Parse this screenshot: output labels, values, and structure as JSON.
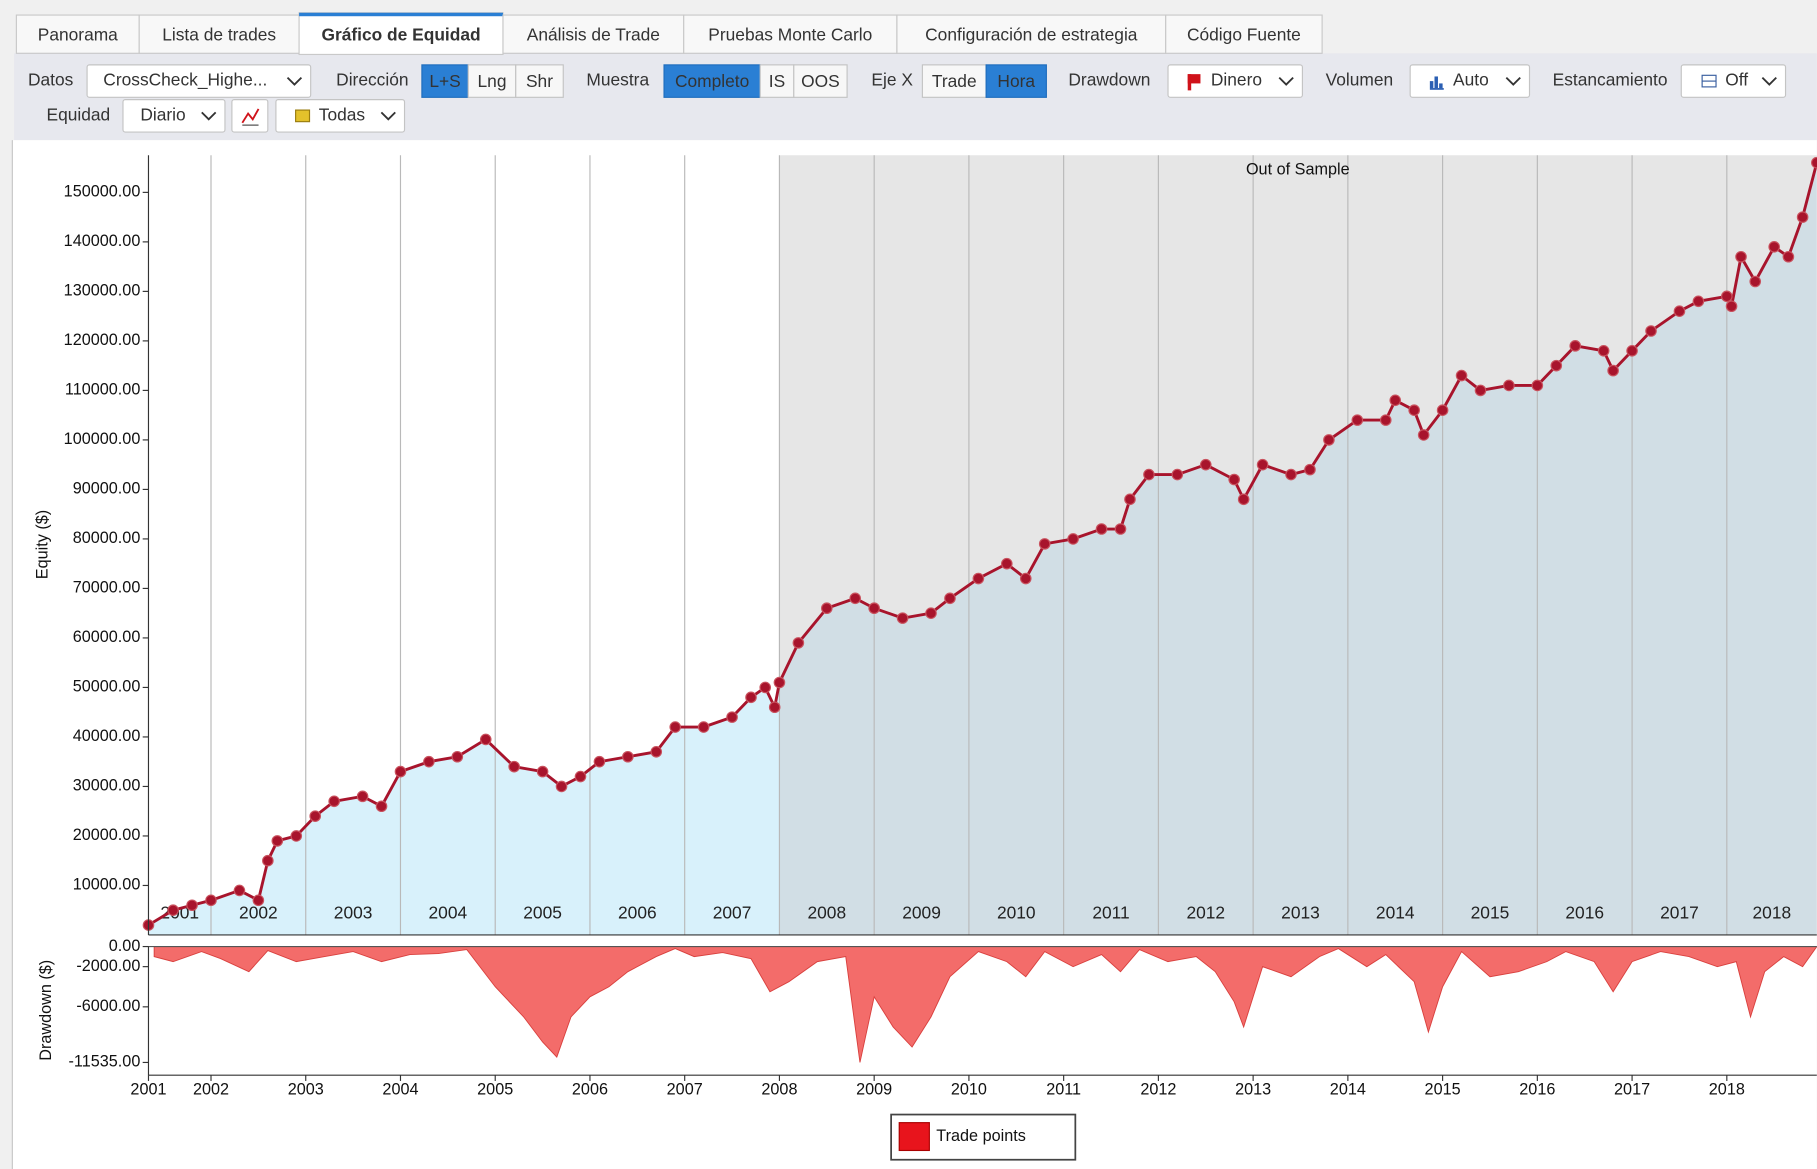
{
  "tabs": [
    "Panorama",
    "Lista de trades",
    "Gráfico de Equidad",
    "Análisis de Trade",
    "Pruebas Monte Carlo",
    "Configuración de estrategia",
    "Código Fuente"
  ],
  "active_tab": 2,
  "toolbar": [
    [
      {
        "label": "Datos"
      },
      {
        "dropdown": "CrossCheck_Highe..."
      },
      {
        "label": "Dirección"
      },
      {
        "buttons": [
          "L+S",
          "Lng",
          "Shr"
        ],
        "active": 0
      },
      {
        "label": "Muestra"
      },
      {
        "buttons": [
          "Completo",
          "IS",
          "OOS"
        ],
        "active": 0
      },
      {
        "label": "Eje X"
      },
      {
        "buttons": [
          "Trade",
          "Hora"
        ],
        "active": 1
      },
      {
        "label": "Drawdown"
      },
      {
        "dropdown": "Dinero"
      },
      {
        "label": "Volumen"
      },
      {
        "dropdown": "Auto"
      },
      {
        "label": "Estancamiento"
      },
      {
        "dropdown": "Off"
      }
    ],
    [
      {
        "label": "Equidad"
      },
      {
        "dropdown": "Diario"
      },
      {
        "dropdown": "Todas"
      }
    ]
  ],
  "chart_data": [
    {
      "type": "line",
      "ylabel": "Equity ($)",
      "annotation": "Out of Sample",
      "oos_start": 2008,
      "band_labels": [
        2001,
        2002,
        2003,
        2004,
        2005,
        2006,
        2007,
        2008,
        2009,
        2010,
        2011,
        2012,
        2013,
        2014,
        2015,
        2016,
        2017,
        2018
      ],
      "xlim": [
        2001.34,
        2018.95
      ],
      "xticks": [
        2002,
        2003,
        2004,
        2005,
        2006,
        2007,
        2008,
        2009,
        2010,
        2011,
        2012,
        2013,
        2014,
        2015,
        2016,
        2017,
        2018
      ],
      "ylim": [
        0,
        157500
      ],
      "yticks": [
        {
          "value": 10000,
          "label": "10000.00"
        },
        {
          "value": 20000,
          "label": "20000.00"
        },
        {
          "value": 30000,
          "label": "30000.00"
        },
        {
          "value": 40000,
          "label": "40000.00"
        },
        {
          "value": 50000,
          "label": "50000.00"
        },
        {
          "value": 60000,
          "label": "60000.00"
        },
        {
          "value": 70000,
          "label": "70000.00"
        },
        {
          "value": 80000,
          "label": "80000.00"
        },
        {
          "value": 90000,
          "label": "90000.00"
        },
        {
          "value": 100000,
          "label": "100000.00"
        },
        {
          "value": 110000,
          "label": "110000.00"
        },
        {
          "value": 120000,
          "label": "120000.00"
        },
        {
          "value": 130000,
          "label": "130000.00"
        },
        {
          "value": 140000,
          "label": "140000.00"
        },
        {
          "value": 150000,
          "label": "150000.00"
        }
      ],
      "series": [
        {
          "name": "Trade points",
          "color": "#e8141c",
          "line_color": "#a8142c",
          "is_fill": "#d8f1fb",
          "oos_fill": "#d1dee5",
          "oos_background": "#e6e6e6",
          "x": [
            2001.34,
            2001.6,
            2001.8,
            2002.0,
            2002.3,
            2002.5,
            2002.6,
            2002.7,
            2002.9,
            2003.1,
            2003.3,
            2003.6,
            2003.8,
            2004.0,
            2004.3,
            2004.6,
            2004.9,
            2005.2,
            2005.5,
            2005.7,
            2005.9,
            2006.1,
            2006.4,
            2006.7,
            2006.9,
            2007.2,
            2007.5,
            2007.7,
            2007.85,
            2007.95,
            2008.0,
            2008.2,
            2008.5,
            2008.8,
            2009.0,
            2009.3,
            2009.6,
            2009.8,
            2010.1,
            2010.4,
            2010.6,
            2010.8,
            2011.1,
            2011.4,
            2011.6,
            2011.7,
            2011.9,
            2012.2,
            2012.5,
            2012.8,
            2012.9,
            2013.1,
            2013.4,
            2013.6,
            2013.8,
            2014.1,
            2014.4,
            2014.5,
            2014.7,
            2014.8,
            2015.0,
            2015.2,
            2015.4,
            2015.7,
            2016.0,
            2016.2,
            2016.4,
            2016.7,
            2016.8,
            2017.0,
            2017.2,
            2017.5,
            2017.7,
            2018.0,
            2018.05,
            2018.15,
            2018.3,
            2018.5,
            2018.65,
            2018.8,
            2018.95
          ],
          "values": [
            2000,
            5000,
            6000,
            7000,
            9000,
            7000,
            15000,
            19000,
            20000,
            24000,
            27000,
            28000,
            26000,
            33000,
            35000,
            36000,
            39500,
            34000,
            33000,
            30000,
            32000,
            35000,
            36000,
            37000,
            42000,
            42000,
            44000,
            48000,
            50000,
            46000,
            51000,
            59000,
            66000,
            68000,
            66000,
            64000,
            65000,
            68000,
            72000,
            75000,
            72000,
            79000,
            80000,
            82000,
            82000,
            88000,
            93000,
            93000,
            95000,
            92000,
            88000,
            95000,
            93000,
            94000,
            100000,
            104000,
            104000,
            108000,
            106000,
            101000,
            106000,
            113000,
            110000,
            111000,
            111000,
            115000,
            119000,
            118000,
            114000,
            118000,
            122000,
            126000,
            128000,
            129000,
            127000,
            137000,
            132000,
            139000,
            137000,
            145000,
            156000
          ]
        }
      ]
    },
    {
      "type": "area",
      "ylabel": "Drawdown ($)",
      "color": "#f36c6a",
      "line_color": "#d9403e",
      "xlim": [
        2001.34,
        2018.95
      ],
      "xticks": [
        {
          "value": 2001.34,
          "label": "2001"
        },
        2002,
        2003,
        2004,
        2005,
        2006,
        2007,
        2008,
        2009,
        2010,
        2011,
        2012,
        2013,
        2014,
        2015,
        2016,
        2017,
        2018
      ],
      "ylim": [
        -12800,
        0
      ],
      "yticks": [
        {
          "value": 0,
          "label": "0.00"
        },
        {
          "value": -2000,
          "label": "-2000.00"
        },
        {
          "value": -6000,
          "label": "-6000.00"
        },
        {
          "value": -11535,
          "label": "-11535.00"
        }
      ],
      "x": [
        2001.4,
        2001.6,
        2001.9,
        2002.1,
        2002.4,
        2002.6,
        2002.9,
        2003.2,
        2003.5,
        2003.8,
        2004.1,
        2004.4,
        2004.7,
        2005.0,
        2005.3,
        2005.5,
        2005.65,
        2005.8,
        2006.0,
        2006.2,
        2006.4,
        2006.7,
        2006.9,
        2007.1,
        2007.4,
        2007.7,
        2007.9,
        2008.1,
        2008.4,
        2008.7,
        2008.85,
        2009.0,
        2009.2,
        2009.4,
        2009.6,
        2009.8,
        2010.1,
        2010.4,
        2010.6,
        2010.8,
        2011.1,
        2011.4,
        2011.6,
        2011.8,
        2012.1,
        2012.4,
        2012.6,
        2012.8,
        2012.9,
        2013.1,
        2013.4,
        2013.7,
        2013.9,
        2014.2,
        2014.4,
        2014.7,
        2014.85,
        2015.0,
        2015.2,
        2015.5,
        2015.8,
        2016.1,
        2016.3,
        2016.6,
        2016.8,
        2017.0,
        2017.3,
        2017.6,
        2017.9,
        2018.1,
        2018.25,
        2018.4,
        2018.6,
        2018.8,
        2018.95
      ],
      "values": [
        -1000,
        -1500,
        -500,
        -1200,
        -2500,
        -400,
        -1500,
        -1000,
        -500,
        -1500,
        -800,
        -700,
        -300,
        -4000,
        -7000,
        -9500,
        -11000,
        -7000,
        -5000,
        -4000,
        -2500,
        -1000,
        -200,
        -1000,
        -600,
        -1200,
        -4500,
        -3500,
        -1500,
        -1000,
        -11535,
        -5000,
        -8000,
        -10000,
        -7000,
        -3000,
        -500,
        -1500,
        -3000,
        -500,
        -2000,
        -800,
        -2500,
        -300,
        -1500,
        -1000,
        -2500,
        -5500,
        -8000,
        -2000,
        -3000,
        -1000,
        -200,
        -2000,
        -800,
        -3500,
        -8500,
        -4000,
        -500,
        -3000,
        -2500,
        -1500,
        -500,
        -1500,
        -4500,
        -1500,
        -500,
        -1000,
        -2000,
        -1500,
        -7000,
        -2500,
        -1000,
        -2000,
        0
      ]
    }
  ]
}
